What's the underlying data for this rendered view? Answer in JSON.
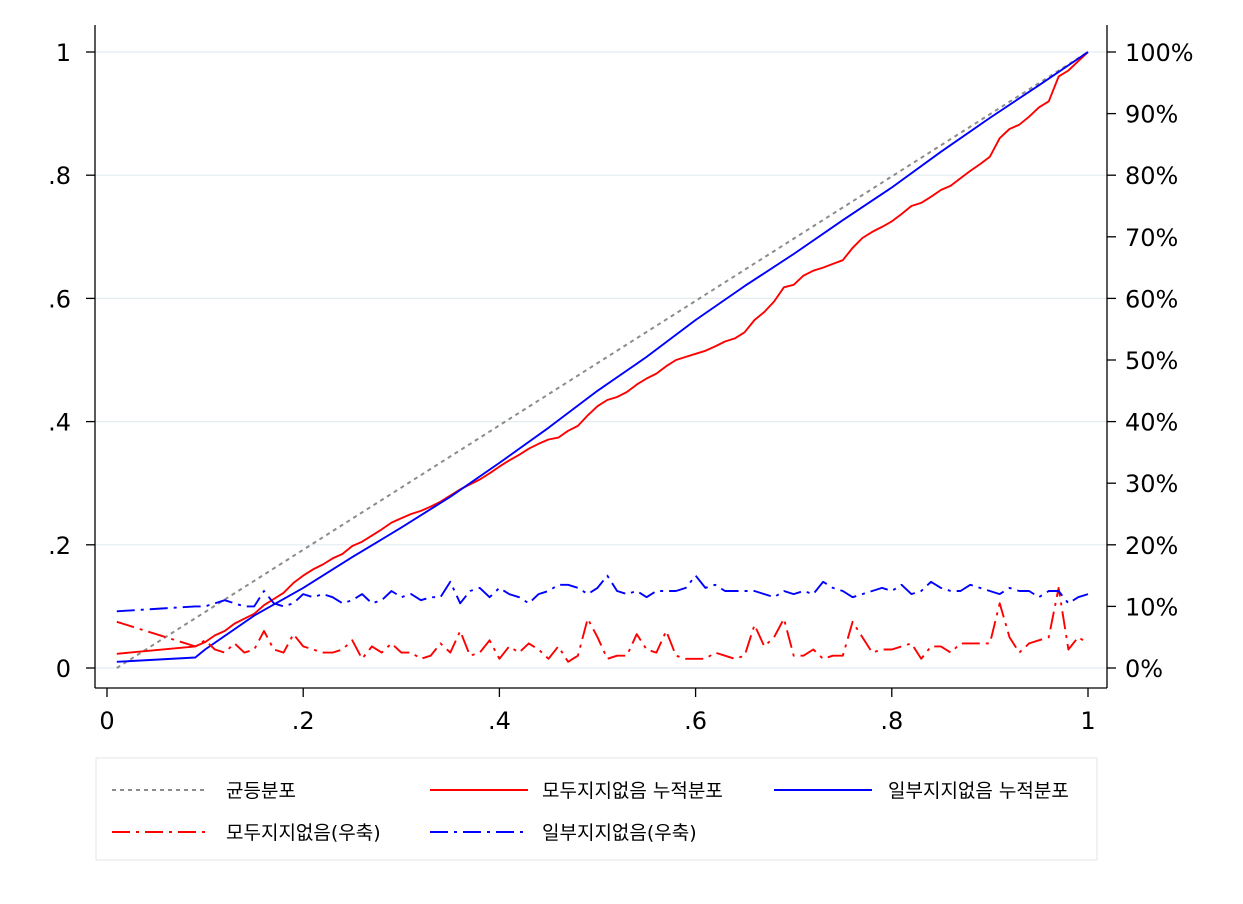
{
  "chart_data": {
    "type": "line",
    "xlim": [
      0,
      1
    ],
    "ylim_left": [
      0,
      1
    ],
    "ylim_right": [
      0,
      100
    ],
    "x_ticks": [
      0,
      0.2,
      0.4,
      0.6,
      0.8,
      1
    ],
    "x_tick_labels": [
      "0",
      ".2",
      ".4",
      ".6",
      ".8",
      "1"
    ],
    "y_left_ticks": [
      0,
      0.2,
      0.4,
      0.6,
      0.8,
      1
    ],
    "y_left_tick_labels": [
      "0",
      ".2",
      ".4",
      ".6",
      ".8",
      "1"
    ],
    "y_right_ticks": [
      0,
      10,
      20,
      30,
      40,
      50,
      60,
      70,
      80,
      90,
      100
    ],
    "y_right_tick_labels": [
      "0%",
      "10%",
      "20%",
      "30%",
      "40%",
      "50%",
      "60%",
      "70%",
      "80%",
      "90%",
      "100%"
    ],
    "grid": true,
    "legend_position": "bottom",
    "series": [
      {
        "name": "균등분포",
        "axis": "left",
        "color": "#8c8c8c",
        "style": "dash",
        "x": [
          0.01,
          1.0
        ],
        "y": [
          0.0,
          1.0
        ]
      },
      {
        "name": "모두지지없음 누적분포",
        "axis": "left",
        "color": "#ff0000",
        "style": "solid",
        "x": [
          0.01,
          0.09,
          0.1,
          0.11,
          0.12,
          0.13,
          0.14,
          0.15,
          0.16,
          0.17,
          0.18,
          0.19,
          0.2,
          0.21,
          0.22,
          0.23,
          0.24,
          0.25,
          0.26,
          0.27,
          0.28,
          0.29,
          0.3,
          0.31,
          0.32,
          0.33,
          0.34,
          0.35,
          0.36,
          0.37,
          0.38,
          0.39,
          0.4,
          0.41,
          0.42,
          0.43,
          0.44,
          0.45,
          0.46,
          0.47,
          0.48,
          0.49,
          0.5,
          0.51,
          0.52,
          0.53,
          0.54,
          0.55,
          0.56,
          0.57,
          0.58,
          0.59,
          0.6,
          0.61,
          0.62,
          0.63,
          0.64,
          0.65,
          0.66,
          0.67,
          0.68,
          0.69,
          0.7,
          0.71,
          0.72,
          0.73,
          0.74,
          0.75,
          0.76,
          0.77,
          0.78,
          0.79,
          0.8,
          0.81,
          0.82,
          0.83,
          0.84,
          0.85,
          0.86,
          0.87,
          0.88,
          0.89,
          0.9,
          0.91,
          0.92,
          0.93,
          0.94,
          0.95,
          0.96,
          0.97,
          0.98,
          0.99,
          1.0
        ],
        "y": [
          0.023,
          0.035,
          0.042,
          0.053,
          0.06,
          0.072,
          0.08,
          0.088,
          0.102,
          0.112,
          0.122,
          0.138,
          0.15,
          0.16,
          0.168,
          0.178,
          0.185,
          0.198,
          0.205,
          0.215,
          0.225,
          0.236,
          0.243,
          0.25,
          0.255,
          0.262,
          0.27,
          0.28,
          0.29,
          0.298,
          0.306,
          0.316,
          0.327,
          0.337,
          0.346,
          0.356,
          0.364,
          0.371,
          0.374,
          0.385,
          0.393,
          0.41,
          0.425,
          0.435,
          0.44,
          0.448,
          0.46,
          0.47,
          0.478,
          0.49,
          0.5,
          0.505,
          0.51,
          0.515,
          0.522,
          0.53,
          0.535,
          0.545,
          0.565,
          0.578,
          0.595,
          0.618,
          0.622,
          0.637,
          0.645,
          0.65,
          0.656,
          0.662,
          0.682,
          0.698,
          0.708,
          0.716,
          0.725,
          0.737,
          0.75,
          0.755,
          0.765,
          0.776,
          0.783,
          0.795,
          0.807,
          0.818,
          0.83,
          0.86,
          0.875,
          0.882,
          0.895,
          0.91,
          0.92,
          0.96,
          0.97,
          0.985,
          1.0
        ]
      },
      {
        "name": "일부지지없음 누적분포",
        "axis": "left",
        "color": "#0000ff",
        "style": "solid",
        "x": [
          0.01,
          0.09,
          0.1,
          0.15,
          0.2,
          0.25,
          0.3,
          0.35,
          0.4,
          0.45,
          0.5,
          0.55,
          0.6,
          0.65,
          0.7,
          0.75,
          0.8,
          0.85,
          0.9,
          0.95,
          1.0
        ],
        "y": [
          0.01,
          0.017,
          0.03,
          0.085,
          0.13,
          0.18,
          0.228,
          0.278,
          0.333,
          0.39,
          0.45,
          0.505,
          0.565,
          0.62,
          0.672,
          0.727,
          0.78,
          0.838,
          0.893,
          0.946,
          1.0
        ]
      },
      {
        "name": "모두지지없음(우축)",
        "axis": "right",
        "color": "#ff0000",
        "style": "dashdot",
        "x": [
          0.01,
          0.09,
          0.1,
          0.11,
          0.12,
          0.13,
          0.14,
          0.15,
          0.16,
          0.17,
          0.18,
          0.19,
          0.2,
          0.21,
          0.22,
          0.23,
          0.24,
          0.25,
          0.26,
          0.27,
          0.28,
          0.29,
          0.3,
          0.31,
          0.32,
          0.33,
          0.34,
          0.35,
          0.36,
          0.37,
          0.38,
          0.39,
          0.4,
          0.41,
          0.42,
          0.43,
          0.44,
          0.45,
          0.46,
          0.47,
          0.48,
          0.49,
          0.5,
          0.51,
          0.52,
          0.53,
          0.54,
          0.55,
          0.56,
          0.57,
          0.58,
          0.59,
          0.6,
          0.61,
          0.62,
          0.63,
          0.64,
          0.65,
          0.66,
          0.67,
          0.68,
          0.69,
          0.7,
          0.71,
          0.72,
          0.73,
          0.74,
          0.75,
          0.76,
          0.77,
          0.78,
          0.79,
          0.8,
          0.81,
          0.82,
          0.83,
          0.84,
          0.85,
          0.86,
          0.87,
          0.88,
          0.89,
          0.9,
          0.91,
          0.92,
          0.93,
          0.94,
          0.95,
          0.96,
          0.97,
          0.98,
          0.99,
          1.0
        ],
        "y": [
          7.5,
          3.5,
          4.5,
          3.0,
          2.5,
          4.0,
          2.5,
          3.0,
          6.0,
          3.0,
          2.5,
          5.5,
          3.5,
          3.0,
          2.5,
          2.5,
          3.0,
          4.5,
          1.5,
          3.5,
          2.5,
          4.0,
          2.5,
          2.5,
          1.5,
          2.0,
          4.0,
          2.5,
          6.0,
          2.0,
          2.5,
          4.5,
          1.5,
          3.5,
          2.5,
          4.0,
          3.0,
          1.5,
          3.5,
          1.0,
          2.0,
          8.0,
          5.0,
          1.5,
          2.0,
          2.0,
          5.5,
          3.0,
          2.5,
          6.0,
          2.0,
          1.5,
          1.5,
          1.5,
          2.5,
          2.0,
          1.5,
          2.0,
          7.0,
          3.5,
          5.0,
          8.0,
          2.0,
          2.0,
          3.0,
          1.5,
          2.0,
          2.0,
          7.5,
          5.0,
          2.5,
          3.0,
          3.0,
          3.5,
          4.0,
          1.5,
          3.5,
          3.5,
          2.5,
          4.0,
          4.0,
          4.0,
          4.0,
          10.5,
          5.0,
          2.5,
          4.0,
          4.5,
          5.0,
          13.0,
          3.0,
          5.0,
          4.0
        ]
      },
      {
        "name": "일부지지없음(우축)",
        "axis": "right",
        "color": "#0000ff",
        "style": "dashdot",
        "x": [
          0.01,
          0.09,
          0.1,
          0.11,
          0.12,
          0.13,
          0.14,
          0.15,
          0.16,
          0.17,
          0.18,
          0.19,
          0.2,
          0.21,
          0.22,
          0.23,
          0.24,
          0.25,
          0.26,
          0.27,
          0.28,
          0.29,
          0.3,
          0.31,
          0.32,
          0.33,
          0.34,
          0.35,
          0.36,
          0.37,
          0.38,
          0.39,
          0.4,
          0.41,
          0.42,
          0.43,
          0.44,
          0.45,
          0.46,
          0.47,
          0.48,
          0.49,
          0.5,
          0.51,
          0.52,
          0.53,
          0.54,
          0.55,
          0.56,
          0.57,
          0.58,
          0.59,
          0.6,
          0.61,
          0.62,
          0.63,
          0.64,
          0.65,
          0.66,
          0.67,
          0.68,
          0.69,
          0.7,
          0.71,
          0.72,
          0.73,
          0.74,
          0.75,
          0.76,
          0.77,
          0.78,
          0.79,
          0.8,
          0.81,
          0.82,
          0.83,
          0.84,
          0.85,
          0.86,
          0.87,
          0.88,
          0.89,
          0.9,
          0.91,
          0.92,
          0.93,
          0.94,
          0.95,
          0.96,
          0.97,
          0.98,
          0.99,
          1.0
        ],
        "y": [
          9.2,
          10.0,
          10.0,
          10.5,
          11.0,
          10.5,
          10.0,
          10.0,
          12.5,
          10.5,
          10.0,
          10.5,
          12.0,
          11.5,
          12.0,
          11.5,
          10.5,
          11.0,
          12.0,
          10.5,
          11.0,
          12.5,
          11.5,
          12.0,
          11.0,
          11.5,
          11.5,
          14.0,
          10.5,
          12.5,
          13.0,
          11.5,
          13.0,
          12.0,
          11.5,
          10.5,
          12.0,
          12.5,
          13.5,
          13.5,
          13.0,
          12.0,
          13.0,
          15.0,
          12.5,
          12.0,
          12.5,
          11.5,
          12.5,
          12.5,
          12.5,
          13.0,
          15.0,
          13.0,
          13.5,
          12.5,
          12.5,
          12.5,
          12.5,
          12.0,
          11.5,
          12.5,
          12.0,
          12.5,
          12.0,
          14.0,
          13.0,
          12.5,
          11.5,
          12.0,
          12.5,
          13.0,
          12.5,
          13.5,
          12.0,
          12.5,
          14.0,
          13.0,
          12.5,
          12.5,
          13.5,
          13.0,
          12.5,
          12.0,
          13.0,
          12.5,
          12.5,
          11.5,
          12.5,
          12.5,
          10.5,
          11.5,
          12.0
        ]
      }
    ]
  }
}
